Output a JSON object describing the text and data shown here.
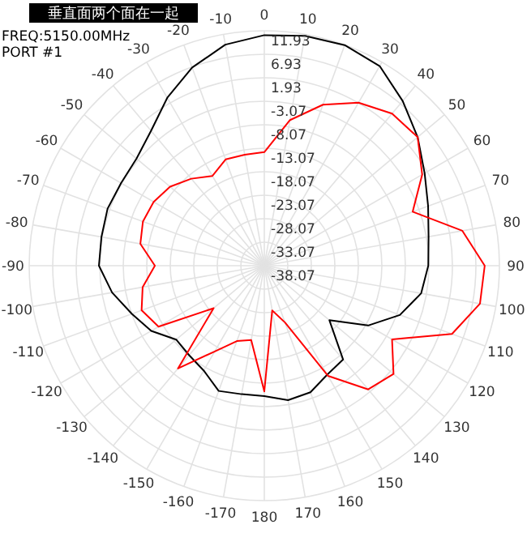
{
  "chart_data": {
    "type": "radar",
    "title": "垂直面两个面在一起",
    "annotations": [
      "FREQ:5150.00MHz",
      "PORT #1"
    ],
    "categories": [
      "0",
      "10",
      "20",
      "30",
      "40",
      "50",
      "60",
      "70",
      "80",
      "90",
      "100",
      "110",
      "120",
      "130",
      "140",
      "150",
      "160",
      "170",
      "180",
      "-170",
      "-160",
      "-150",
      "-140",
      "-130",
      "-120",
      "-110",
      "-100",
      "-90",
      "-80",
      "-70",
      "-60",
      "-50",
      "-40",
      "-30",
      "-20",
      "-10"
    ],
    "ylim": [
      -38.07,
      11.93
    ],
    "yticks": [
      -38.07,
      -33.07,
      -28.07,
      -23.07,
      -18.07,
      -13.07,
      -8.07,
      -3.07,
      1.93,
      6.93,
      11.93
    ],
    "grid": true,
    "series": [
      {
        "color": "#000000",
        "values": [
          11.0,
          11.6,
          11.9,
          11.0,
          7.7,
          4.5,
          1.3,
          -1.0,
          -2.6,
          -3.2,
          -4.2,
          -7.4,
          -12.6,
          -20.0,
          -12.0,
          -11.3,
          -9.4,
          -9.0,
          -10.3,
          -10.3,
          -9.7,
          -12.3,
          -13.2,
          -13.6,
          -10.3,
          -8.1,
          -5.2,
          -2.9,
          -2.9,
          -2.6,
          -2.9,
          -2.6,
          -0.6,
          3.2,
          6.8,
          9.7
        ]
      },
      {
        "color": "#ff0000",
        "values": [
          -13.9,
          -6.6,
          -1.6,
          2.0,
          4.2,
          4.5,
          0.7,
          -4.5,
          4.7,
          8.8,
          8.5,
          4.4,
          -6.7,
          -2.2,
          -3.7,
          -11.0,
          -25.2,
          -28.4,
          -11.3,
          -22.0,
          -21.0,
          -17.0,
          -9.5,
          -24.0,
          -12.1,
          -10.3,
          -11.8,
          -14.8,
          -11.3,
          -10.6,
          -10.9,
          -11.9,
          -13.9,
          -16.0,
          -14.0,
          -14.1
        ]
      }
    ]
  }
}
